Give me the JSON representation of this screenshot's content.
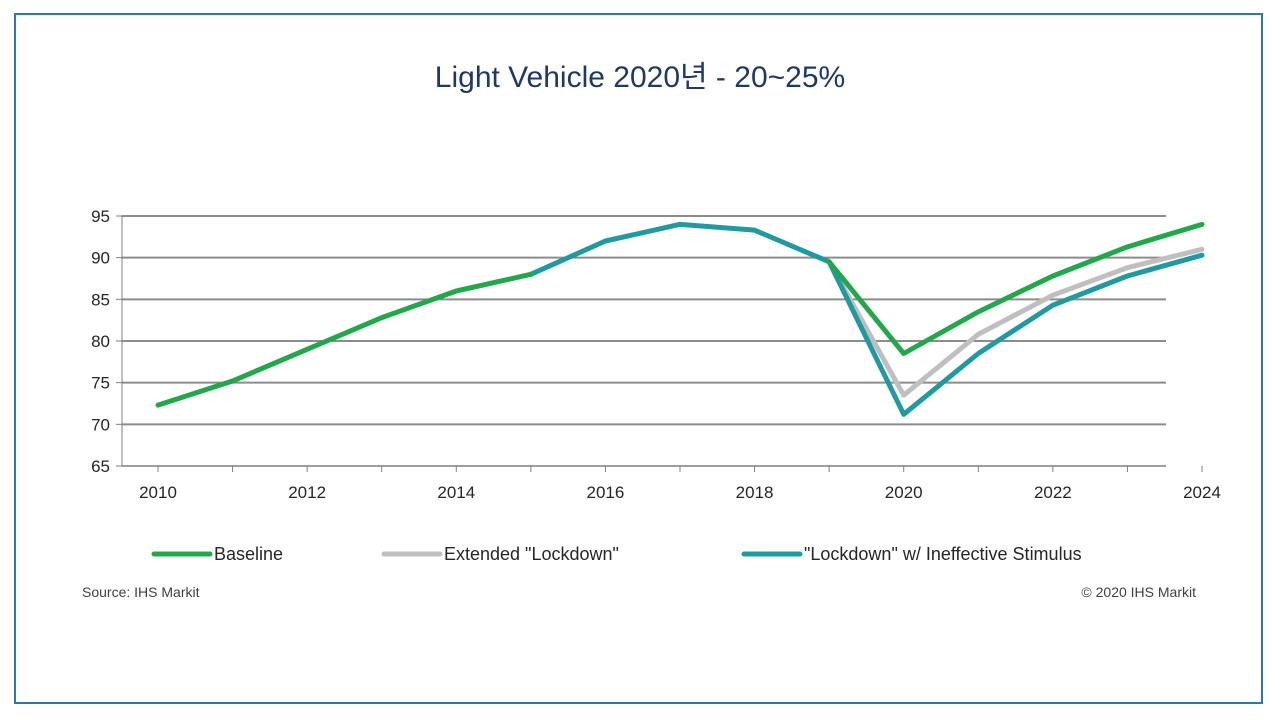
{
  "slide": {
    "title": "Light Vehicle 2020년 - 20~25%"
  },
  "chart_data": {
    "type": "line",
    "title": "",
    "xlabel": "",
    "ylabel": "",
    "x": [
      2010,
      2011,
      2012,
      2013,
      2014,
      2015,
      2016,
      2017,
      2018,
      2019,
      2020,
      2021,
      2022,
      2023,
      2024
    ],
    "x_tick_labels": [
      "2010",
      "2012",
      "2014",
      "2016",
      "2018",
      "2020",
      "2022",
      "2024"
    ],
    "y_tick_labels": [
      "95",
      "90",
      "85",
      "80",
      "75",
      "70",
      "65"
    ],
    "ylim": [
      65,
      95
    ],
    "grid": true,
    "legend_position": "bottom",
    "series": [
      {
        "name": "Extended \"Lockdown\"",
        "color": "#bfbfbf",
        "values": [
          null,
          null,
          null,
          null,
          null,
          null,
          null,
          null,
          null,
          89.5,
          73.5,
          80.8,
          85.5,
          88.8,
          91.0
        ]
      },
      {
        "name": "\"Lockdown\" w/ Ineffective Stimulus",
        "color": "#1f9aa0",
        "values": [
          null,
          null,
          null,
          null,
          null,
          88.0,
          92.0,
          94.0,
          93.3,
          89.5,
          71.2,
          78.5,
          84.3,
          87.8,
          90.3
        ]
      },
      {
        "name": "Baseline",
        "color": "#22a84b",
        "values": [
          72.3,
          75.2,
          79.0,
          82.8,
          86.0,
          88.0,
          null,
          null,
          null,
          89.5,
          78.5,
          83.5,
          87.8,
          91.3,
          94.0
        ]
      }
    ],
    "source_note": "Source: IHS Markit",
    "copyright_note": "© 2020 IHS Markit"
  }
}
